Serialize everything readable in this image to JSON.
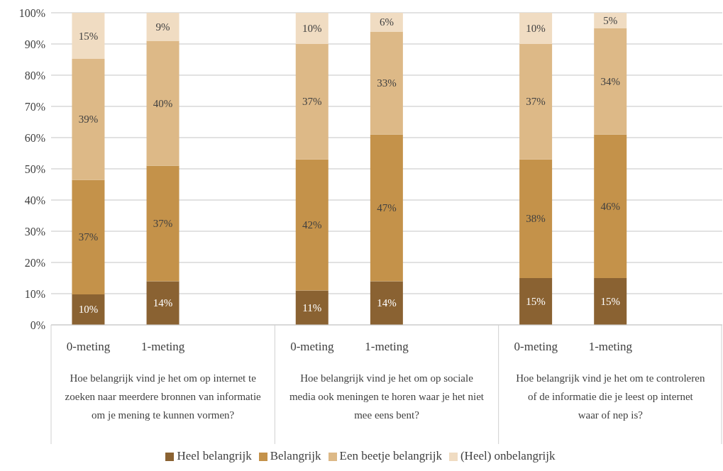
{
  "chart_data": {
    "type": "bar",
    "stacked": true,
    "categories": [
      "0-meting",
      "1-meting",
      null,
      "0-meting",
      "1-meting",
      null,
      "0-meting",
      "1-meting",
      null
    ],
    "series": [
      {
        "name": "Heel belangrijk",
        "color": "#8a6232",
        "values": [
          9.8,
          14,
          null,
          11,
          14,
          null,
          15,
          15,
          null
        ],
        "value_labels": [
          "10%",
          "14%",
          null,
          "11%",
          "14%",
          null,
          "15%",
          "15%",
          null
        ]
      },
      {
        "name": "Belangrijk",
        "color": "#c4924a",
        "values": [
          36.7,
          37,
          null,
          42,
          47,
          null,
          38,
          46,
          null
        ],
        "value_labels": [
          "37%",
          "37%",
          null,
          "42%",
          "47%",
          null,
          "38%",
          "46%",
          null
        ]
      },
      {
        "name": "Een beetje belangrijk",
        "color": "#ddb987",
        "values": [
          38.7,
          40,
          null,
          37,
          33,
          null,
          37,
          34,
          null
        ],
        "value_labels": [
          "39%",
          "40%",
          null,
          "37%",
          "33%",
          null,
          "37%",
          "34%",
          null
        ]
      },
      {
        "name": "(Heel) onbelangrijk",
        "color": "#f0dcc2",
        "values": [
          14.8,
          9,
          null,
          10,
          6,
          null,
          10,
          5,
          null
        ],
        "value_labels": [
          "15%",
          "9%",
          null,
          "10%",
          "6%",
          null,
          "10%",
          "5%",
          null
        ]
      }
    ],
    "annotations": [
      "Hoe belangrijk vind je het om op internet te zoeken naar meerdere bronnen van informatie om je mening te kunnen vormen?",
      "Hoe belangrijk vind je het om op sociale media ook meningen te horen waar je het niet mee eens bent?",
      "Hoe belangrijk vind je het om te controleren of de informatie die je leest op internet waar of nep is?"
    ],
    "ylim": [
      0,
      100
    ],
    "yticks": [
      {
        "value": 0,
        "label": "0%"
      },
      {
        "value": 10,
        "label": "10%"
      },
      {
        "value": 20,
        "label": "20%"
      },
      {
        "value": 30,
        "label": "30%"
      },
      {
        "value": 40,
        "label": "40%"
      },
      {
        "value": 50,
        "label": "50%"
      },
      {
        "value": 60,
        "label": "60%"
      },
      {
        "value": 70,
        "label": "70%"
      },
      {
        "value": 80,
        "label": "80%"
      },
      {
        "value": 90,
        "label": "90%"
      },
      {
        "value": 100,
        "label": "100%"
      }
    ],
    "grid": "y",
    "legend": "bottom"
  }
}
